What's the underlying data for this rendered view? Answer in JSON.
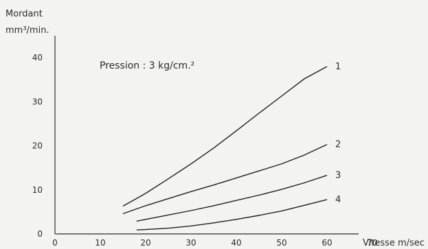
{
  "chart_data": {
    "type": "line",
    "xlabel": "Vitesse m/sec",
    "ylabel_line1": "Mordant",
    "ylabel_line2": "mm³/min.",
    "annotation": "Pression : 3 kg/cm.²",
    "xlim": [
      0,
      80
    ],
    "ylim": [
      0,
      45
    ],
    "xticks": [
      0,
      10,
      20,
      30,
      40,
      50,
      60,
      70
    ],
    "yticks": [
      0,
      10,
      20,
      30,
      40
    ],
    "grid": false,
    "series": [
      {
        "name": "1",
        "x": [
          15,
          20,
          25,
          30,
          35,
          40,
          45,
          50,
          55,
          60
        ],
        "y": [
          6.3,
          9.2,
          12.5,
          15.9,
          19.5,
          23.4,
          27.4,
          31.3,
          35.2,
          38.0
        ]
      },
      {
        "name": "2",
        "x": [
          15,
          20,
          25,
          30,
          35,
          40,
          45,
          50,
          55,
          60
        ],
        "y": [
          4.6,
          6.4,
          8.0,
          9.6,
          11.1,
          12.7,
          14.3,
          15.9,
          17.9,
          20.3
        ]
      },
      {
        "name": "3",
        "x": [
          18,
          20,
          25,
          30,
          35,
          40,
          45,
          50,
          55,
          60
        ],
        "y": [
          2.9,
          3.3,
          4.3,
          5.3,
          6.4,
          7.6,
          8.8,
          10.1,
          11.6,
          13.3
        ]
      },
      {
        "name": "4",
        "x": [
          18,
          20,
          25,
          30,
          35,
          40,
          45,
          50,
          55,
          60
        ],
        "y": [
          0.9,
          1.0,
          1.3,
          1.8,
          2.5,
          3.3,
          4.2,
          5.2,
          6.5,
          7.8
        ]
      }
    ]
  }
}
